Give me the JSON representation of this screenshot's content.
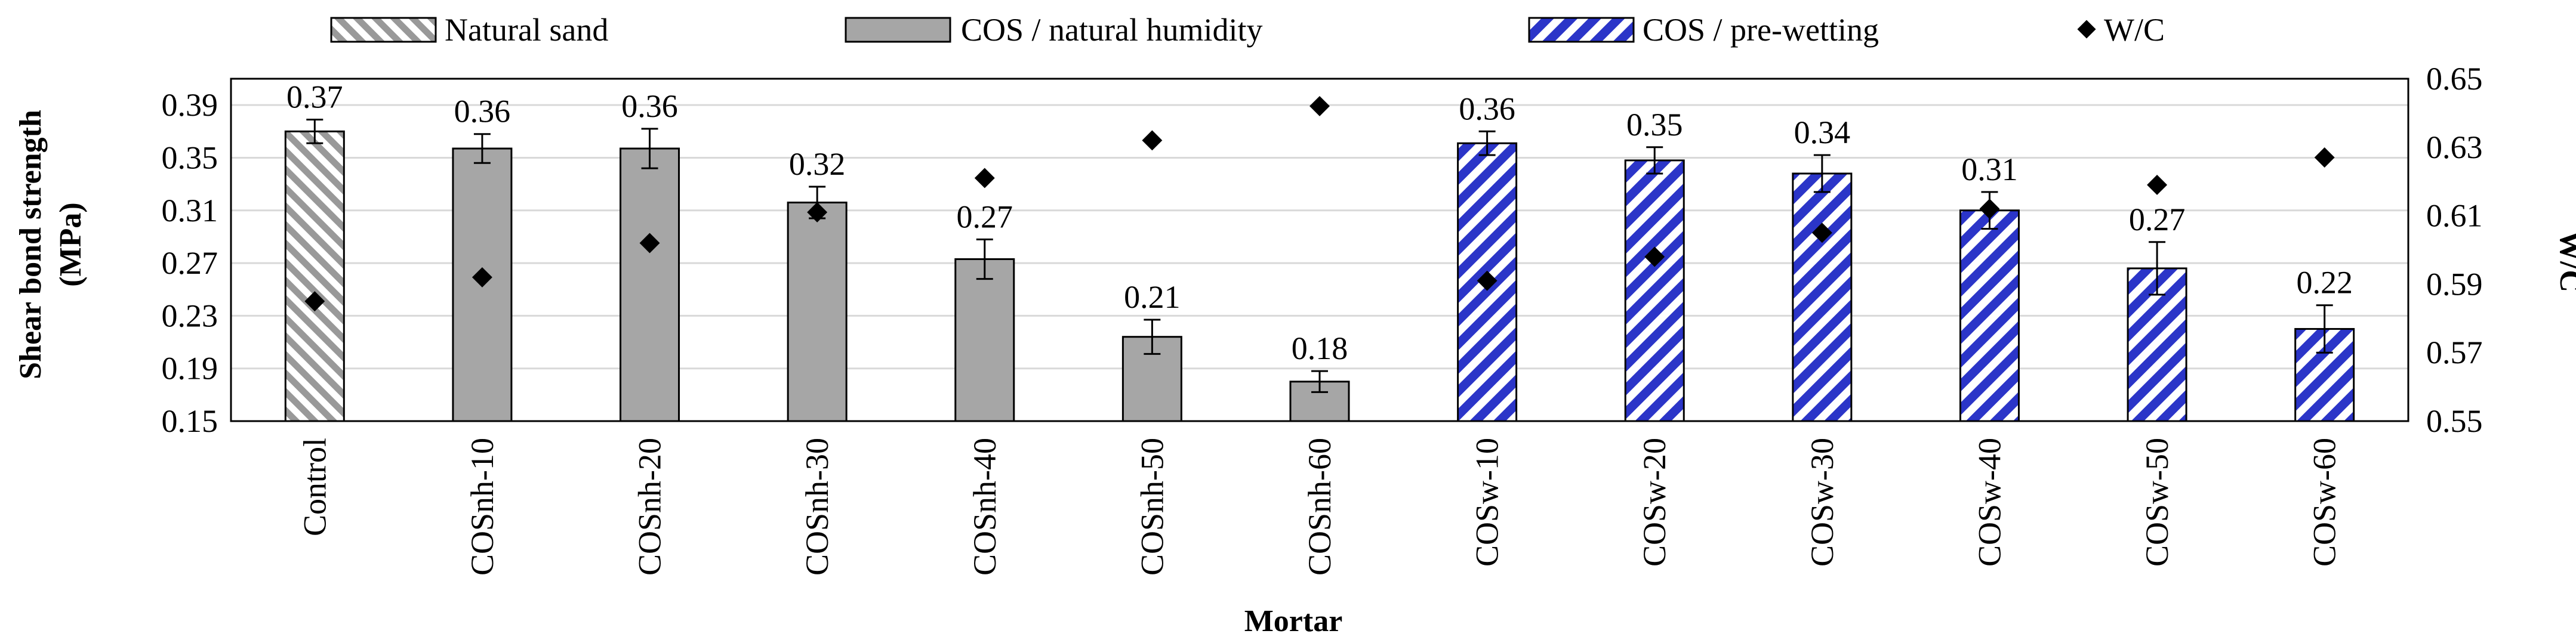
{
  "chart_data": {
    "type": "bar",
    "xlabel": "Mortar",
    "ylabel_left": [
      "Shear bond strength",
      "(MPa)"
    ],
    "ylabel_right": "W/C",
    "ylim_left": [
      0.15,
      0.41
    ],
    "yticks_left": [
      "0.15",
      "0.19",
      "0.23",
      "0.27",
      "0.31",
      "0.35",
      "0.39"
    ],
    "ylim_right": [
      0.55,
      0.65
    ],
    "yticks_right": [
      "0.55",
      "0.57",
      "0.59",
      "0.61",
      "0.63",
      "0.65"
    ],
    "grid": true,
    "legend_position": "top",
    "legend": [
      "Natural sand",
      "COS / natural humidity",
      "COS / pre-wetting",
      "W/C"
    ],
    "categories": [
      "Control",
      "COSnh-10",
      "COSnh-20",
      "COSnh-30",
      "COSnh-40",
      "COSnh-50",
      "COSnh-60",
      "COSw-10",
      "COSw-20",
      "COSw-30",
      "COSw-40",
      "COSw-50",
      "COSw-60"
    ],
    "groups": [
      "Natural sand",
      "COS / natural humidity",
      "COS / natural humidity",
      "COS / natural humidity",
      "COS / natural humidity",
      "COS / natural humidity",
      "COS / natural humidity",
      "COS / pre-wetting",
      "COS / pre-wetting",
      "COS / pre-wetting",
      "COS / pre-wetting",
      "COS / pre-wetting",
      "COS / pre-wetting"
    ],
    "shear_bond_strength": [
      0.37,
      0.357,
      0.357,
      0.316,
      0.273,
      0.214,
      0.18,
      0.361,
      0.348,
      0.338,
      0.31,
      0.266,
      0.22
    ],
    "error": [
      0.009,
      0.011,
      0.015,
      0.012,
      0.015,
      0.013,
      0.008,
      0.009,
      0.01,
      0.014,
      0.014,
      0.02,
      0.018
    ],
    "data_labels": [
      "0.37",
      "0.36",
      "0.36",
      "0.32",
      "0.27",
      "0.21",
      "0.18",
      "0.36",
      "0.35",
      "0.34",
      "0.31",
      "0.27",
      "0.22"
    ],
    "w_c": [
      0.585,
      0.592,
      0.602,
      0.611,
      0.621,
      0.632,
      0.642,
      0.591,
      0.598,
      0.605,
      0.612,
      0.619,
      0.627
    ]
  },
  "colors": {
    "natural_sand": "#999999",
    "natural_humidity": "#a6a6a6",
    "pre_wetting": "#2b35c8",
    "marker": "#000000",
    "grid": "#d9d9d9"
  }
}
